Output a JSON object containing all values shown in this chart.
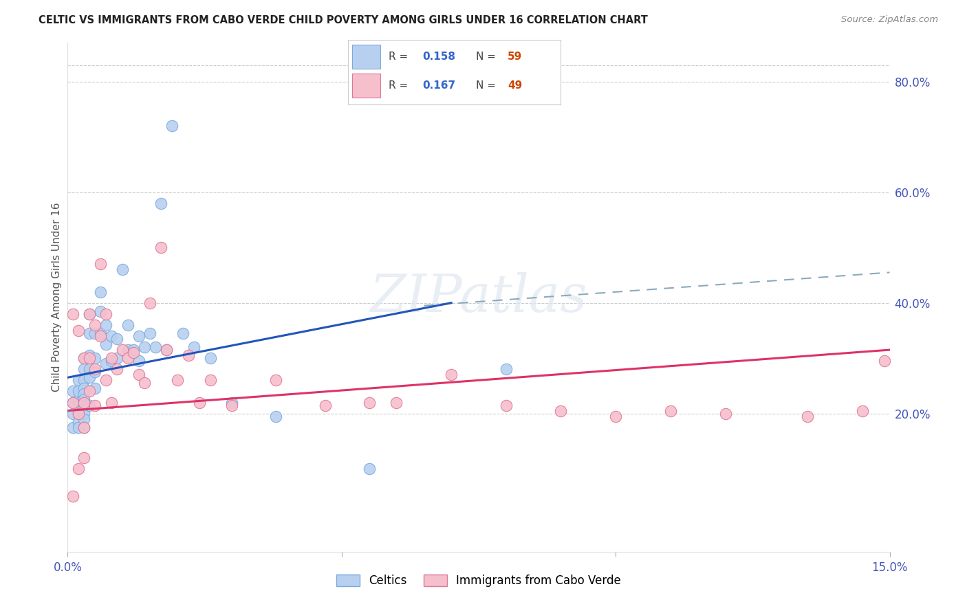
{
  "title": "CELTIC VS IMMIGRANTS FROM CABO VERDE CHILD POVERTY AMONG GIRLS UNDER 16 CORRELATION CHART",
  "source": "Source: ZipAtlas.com",
  "ylabel": "Child Poverty Among Girls Under 16",
  "xlim": [
    0.0,
    0.15
  ],
  "ylim": [
    -0.05,
    0.87
  ],
  "yticks_right": [
    0.2,
    0.4,
    0.6,
    0.8
  ],
  "ytick_right_labels": [
    "20.0%",
    "40.0%",
    "60.0%",
    "80.0%"
  ],
  "grid_color": "#cccccc",
  "background_color": "#ffffff",
  "celtic_fill": "#b8d0ef",
  "celtic_edge": "#7aaae0",
  "cabo_fill": "#f5bfcc",
  "cabo_edge": "#e07898",
  "trend_celtic_solid": "#2255bb",
  "trend_cabo_solid": "#dd3366",
  "trend_celtic_dash": "#8aaabb",
  "watermark_text": "ZIPatlas",
  "legend_r_celtic": "0.158",
  "legend_n_celtic": "59",
  "legend_r_cabo": "0.167",
  "legend_n_cabo": "49",
  "legend_label_celtic": "Celtics",
  "legend_label_cabo": "Immigrants from Cabo Verde",
  "celtic_x": [
    0.001,
    0.001,
    0.001,
    0.001,
    0.002,
    0.002,
    0.002,
    0.002,
    0.002,
    0.002,
    0.003,
    0.003,
    0.003,
    0.003,
    0.003,
    0.003,
    0.003,
    0.003,
    0.003,
    0.003,
    0.004,
    0.004,
    0.004,
    0.004,
    0.004,
    0.004,
    0.005,
    0.005,
    0.005,
    0.005,
    0.006,
    0.006,
    0.006,
    0.007,
    0.007,
    0.007,
    0.008,
    0.008,
    0.009,
    0.009,
    0.01,
    0.011,
    0.011,
    0.012,
    0.013,
    0.013,
    0.014,
    0.015,
    0.016,
    0.017,
    0.018,
    0.019,
    0.021,
    0.023,
    0.026,
    0.03,
    0.038,
    0.055,
    0.08
  ],
  "celtic_y": [
    0.24,
    0.22,
    0.2,
    0.175,
    0.26,
    0.24,
    0.22,
    0.2,
    0.185,
    0.175,
    0.3,
    0.28,
    0.26,
    0.245,
    0.235,
    0.225,
    0.215,
    0.2,
    0.19,
    0.175,
    0.38,
    0.345,
    0.305,
    0.28,
    0.265,
    0.215,
    0.345,
    0.3,
    0.275,
    0.245,
    0.42,
    0.385,
    0.345,
    0.36,
    0.325,
    0.29,
    0.34,
    0.295,
    0.335,
    0.3,
    0.46,
    0.36,
    0.315,
    0.315,
    0.34,
    0.295,
    0.32,
    0.345,
    0.32,
    0.58,
    0.315,
    0.72,
    0.345,
    0.32,
    0.3,
    0.22,
    0.195,
    0.1,
    0.28
  ],
  "cabo_x": [
    0.001,
    0.001,
    0.001,
    0.002,
    0.002,
    0.002,
    0.003,
    0.003,
    0.003,
    0.003,
    0.004,
    0.004,
    0.004,
    0.005,
    0.005,
    0.005,
    0.006,
    0.006,
    0.007,
    0.007,
    0.008,
    0.008,
    0.009,
    0.01,
    0.011,
    0.012,
    0.013,
    0.014,
    0.015,
    0.017,
    0.018,
    0.02,
    0.022,
    0.024,
    0.026,
    0.03,
    0.038,
    0.047,
    0.055,
    0.06,
    0.07,
    0.08,
    0.09,
    0.1,
    0.11,
    0.12,
    0.135,
    0.145,
    0.149
  ],
  "cabo_y": [
    0.38,
    0.22,
    0.05,
    0.35,
    0.2,
    0.1,
    0.3,
    0.22,
    0.175,
    0.12,
    0.38,
    0.3,
    0.24,
    0.36,
    0.28,
    0.215,
    0.47,
    0.34,
    0.38,
    0.26,
    0.3,
    0.22,
    0.28,
    0.315,
    0.3,
    0.31,
    0.27,
    0.255,
    0.4,
    0.5,
    0.315,
    0.26,
    0.305,
    0.22,
    0.26,
    0.215,
    0.26,
    0.215,
    0.22,
    0.22,
    0.27,
    0.215,
    0.205,
    0.195,
    0.205,
    0.2,
    0.195,
    0.205,
    0.295
  ],
  "celtic_trend_x0": 0.0,
  "celtic_trend_y0": 0.265,
  "celtic_trend_x1": 0.07,
  "celtic_trend_y1": 0.4,
  "cabo_trend_x0": 0.0,
  "cabo_trend_y0": 0.205,
  "cabo_trend_x1": 0.15,
  "cabo_trend_y1": 0.315,
  "dash_trend_x0": 0.065,
  "dash_trend_y0": 0.395,
  "dash_trend_x1": 0.15,
  "dash_trend_y1": 0.455
}
